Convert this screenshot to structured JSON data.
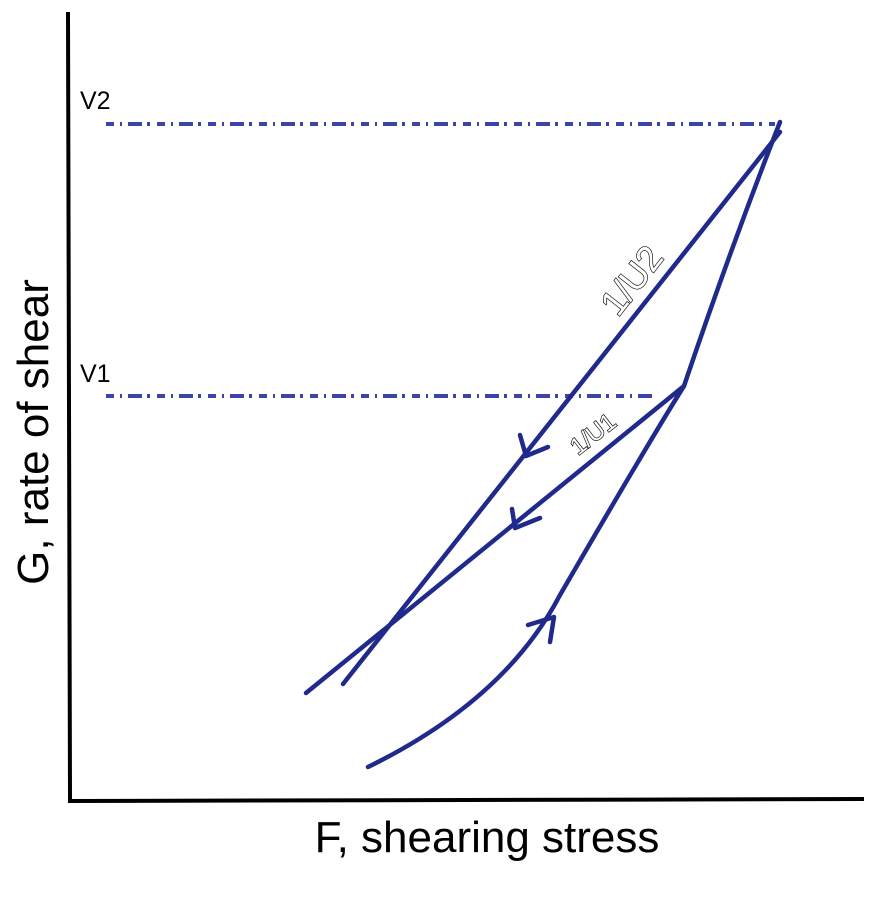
{
  "axes": {
    "x_label": "F, shearing stress",
    "y_label": "G, rate of shear"
  },
  "levels": {
    "upper": "V2",
    "lower": "V1"
  },
  "slopes": {
    "upper": "1/U2",
    "lower": "1/U1"
  },
  "colors": {
    "curve": "#1f2a8c",
    "level_line": "#3b44a8",
    "axis": "#000000"
  }
}
